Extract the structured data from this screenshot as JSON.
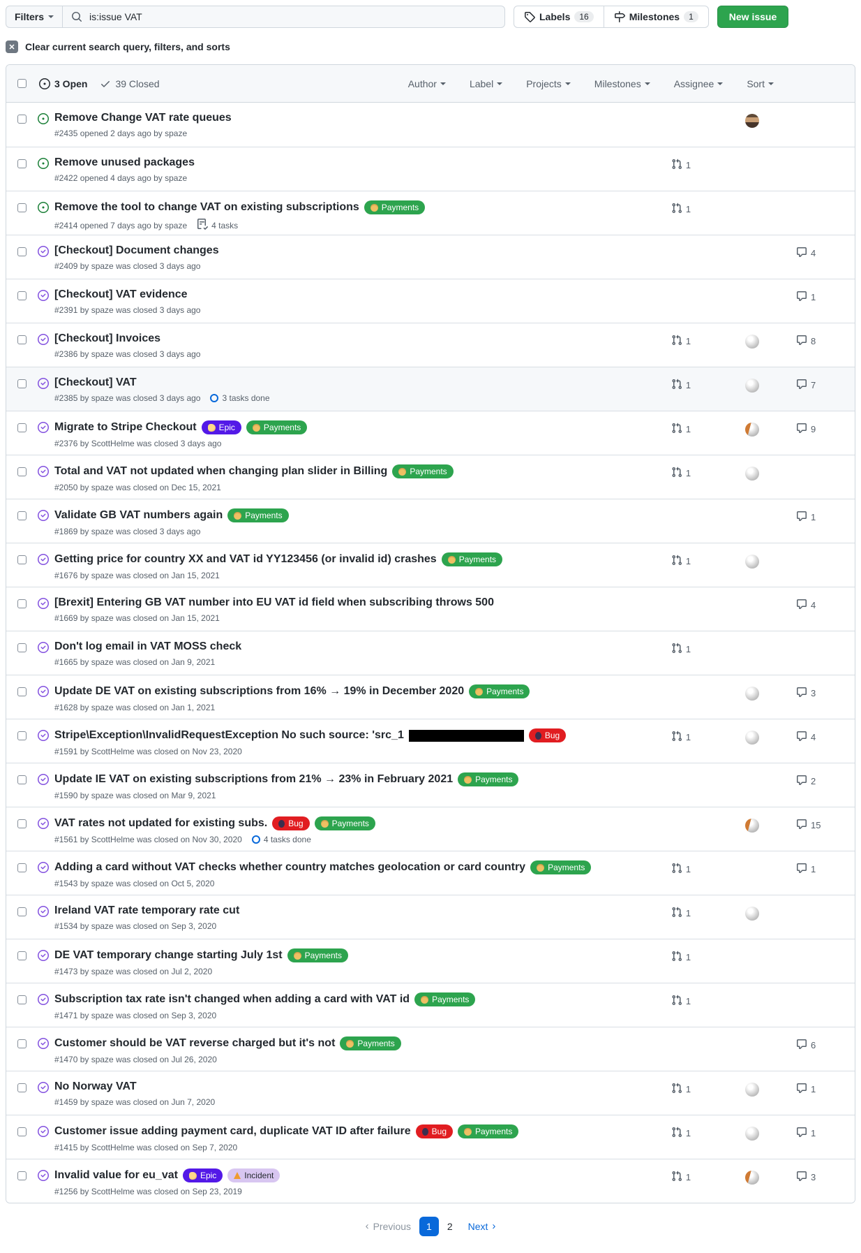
{
  "toolbar": {
    "filters_label": "Filters",
    "search_icon": "magnifier-icon",
    "search_value": "is:issue VAT",
    "labels_icon": "tag-icon",
    "labels_label": "Labels",
    "labels_count": "16",
    "milestones_icon": "milestone-icon",
    "milestones_label": "Milestones",
    "milestones_count": "1",
    "new_issue_label": "New issue"
  },
  "clear_search": {
    "icon": "x-icon",
    "label": "Clear current search query, filters, and sorts"
  },
  "list_header": {
    "open_label": "3 Open",
    "closed_label": "39 Closed",
    "filters": [
      {
        "label": "Author"
      },
      {
        "label": "Label"
      },
      {
        "label": "Projects"
      },
      {
        "label": "Milestones"
      },
      {
        "label": "Assignee"
      },
      {
        "label": "Sort"
      }
    ]
  },
  "label_defs": {
    "Payments": {
      "bg": "#2da44e",
      "fg": "#ffffff",
      "icon": "money-bag-icon"
    },
    "Epic": {
      "bg": "#5319e7",
      "fg": "#ffffff",
      "icon": "muscle-icon"
    },
    "Bug": {
      "bg": "#e11d21",
      "fg": "#ffffff",
      "icon": "bug-icon"
    },
    "Incident": {
      "bg": "#d8c6f1",
      "fg": "#24292f",
      "icon": "warning-icon"
    }
  },
  "colors": {
    "open_icon": "#1a7f37",
    "closed_icon": "#8250df",
    "accent": "#0969da",
    "new_issue_bg": "#2da44e"
  },
  "issues": [
    {
      "state": "open",
      "title": "Remove Change VAT rate queues",
      "labels": [],
      "meta": "#2435 opened 2 days ago by spaze",
      "tasks": null,
      "pr": null,
      "assignee": "person",
      "comments": null,
      "highlight": false,
      "redacted": false
    },
    {
      "state": "open",
      "title": "Remove unused packages",
      "labels": [],
      "meta": "#2422 opened 4 days ago by spaze",
      "tasks": null,
      "pr": 1,
      "assignee": null,
      "comments": null,
      "highlight": false,
      "redacted": false
    },
    {
      "state": "open",
      "title": "Remove the tool to change VAT on existing subscriptions",
      "labels": [
        "Payments"
      ],
      "meta": "#2414 opened 7 days ago by spaze",
      "tasks": {
        "type": "tasklist",
        "text": "4 tasks"
      },
      "pr": 1,
      "assignee": null,
      "comments": null,
      "highlight": false,
      "redacted": false
    },
    {
      "state": "closed",
      "title": "[Checkout] Document changes",
      "labels": [],
      "meta": "#2409 by spaze was closed 3 days ago",
      "tasks": null,
      "pr": null,
      "assignee": null,
      "comments": 4,
      "highlight": false,
      "redacted": false
    },
    {
      "state": "closed",
      "title": "[Checkout] VAT evidence",
      "labels": [],
      "meta": "#2391 by spaze was closed 3 days ago",
      "tasks": null,
      "pr": null,
      "assignee": null,
      "comments": 1,
      "highlight": false,
      "redacted": false
    },
    {
      "state": "closed",
      "title": "[Checkout] Invoices",
      "labels": [],
      "meta": "#2386 by spaze was closed 3 days ago",
      "tasks": null,
      "pr": 1,
      "assignee": "globe",
      "comments": 8,
      "highlight": false,
      "redacted": false
    },
    {
      "state": "closed",
      "title": "[Checkout] VAT",
      "labels": [],
      "meta": "#2385 by spaze was closed 3 days ago",
      "tasks": {
        "type": "progress",
        "text": "3 tasks done"
      },
      "pr": 1,
      "assignee": "globe",
      "comments": 7,
      "highlight": true,
      "redacted": false
    },
    {
      "state": "closed",
      "title": "Migrate to Stripe Checkout",
      "labels": [
        "Epic",
        "Payments"
      ],
      "meta": "#2376 by ScottHelme was closed 3 days ago",
      "tasks": null,
      "pr": 1,
      "assignee": "globe-orange",
      "comments": 9,
      "highlight": false,
      "redacted": false
    },
    {
      "state": "closed",
      "title": "Total and VAT not updated when changing plan slider in Billing",
      "labels": [
        "Payments"
      ],
      "meta": "#2050 by spaze was closed on Dec 15, 2021",
      "tasks": null,
      "pr": 1,
      "assignee": "globe",
      "comments": null,
      "highlight": false,
      "redacted": false
    },
    {
      "state": "closed",
      "title": "Validate GB VAT numbers again",
      "labels": [
        "Payments"
      ],
      "meta": "#1869 by spaze was closed 3 days ago",
      "tasks": null,
      "pr": null,
      "assignee": null,
      "comments": 1,
      "highlight": false,
      "redacted": false
    },
    {
      "state": "closed",
      "title": "Getting price for country XX and VAT id YY123456 (or invalid id) crashes",
      "labels": [
        "Payments"
      ],
      "meta": "#1676 by spaze was closed on Jan 15, 2021",
      "tasks": null,
      "pr": 1,
      "assignee": "globe",
      "comments": null,
      "highlight": false,
      "redacted": false
    },
    {
      "state": "closed",
      "title": "[Brexit] Entering GB VAT number into EU VAT id field when subscribing throws 500",
      "labels": [],
      "meta": "#1669 by spaze was closed on Jan 15, 2021",
      "tasks": null,
      "pr": null,
      "assignee": null,
      "comments": 4,
      "highlight": false,
      "redacted": false
    },
    {
      "state": "closed",
      "title": "Don't log email in VAT MOSS check",
      "labels": [],
      "meta": "#1665 by spaze was closed on Jan 9, 2021",
      "tasks": null,
      "pr": 1,
      "assignee": null,
      "comments": null,
      "highlight": false,
      "redacted": false
    },
    {
      "state": "closed",
      "title": "Update DE VAT on existing subscriptions from 16% → 19% in December 2020",
      "labels": [
        "Payments"
      ],
      "meta": "#1628 by spaze was closed on Jan 1, 2021",
      "tasks": null,
      "pr": null,
      "assignee": "globe",
      "comments": 3,
      "highlight": false,
      "redacted": false
    },
    {
      "state": "closed",
      "title": "Stripe\\Exception\\InvalidRequestException No such source: 'src_1",
      "labels": [
        "Bug"
      ],
      "meta": "#1591 by ScottHelme was closed on Nov 23, 2020",
      "tasks": null,
      "pr": 1,
      "assignee": "globe",
      "comments": 4,
      "highlight": false,
      "redacted": true
    },
    {
      "state": "closed",
      "title": "Update IE VAT on existing subscriptions from 21% → 23% in February 2021",
      "labels": [
        "Payments"
      ],
      "meta": "#1590 by spaze was closed on Mar 9, 2021",
      "tasks": null,
      "pr": null,
      "assignee": null,
      "comments": 2,
      "highlight": false,
      "redacted": false
    },
    {
      "state": "closed",
      "title": "VAT rates not updated for existing subs.",
      "labels": [
        "Bug",
        "Payments"
      ],
      "meta": "#1561 by ScottHelme was closed on Nov 30, 2020",
      "tasks": {
        "type": "progress",
        "text": "4 tasks done"
      },
      "pr": null,
      "assignee": "globe-orange",
      "comments": 15,
      "highlight": false,
      "redacted": false
    },
    {
      "state": "closed",
      "title": "Adding a card without VAT checks whether country matches geolocation or card country",
      "labels": [
        "Payments"
      ],
      "meta": "#1543 by spaze was closed on Oct 5, 2020",
      "tasks": null,
      "pr": 1,
      "assignee": null,
      "comments": 1,
      "highlight": false,
      "redacted": false
    },
    {
      "state": "closed",
      "title": "Ireland VAT rate temporary rate cut",
      "labels": [],
      "meta": "#1534 by spaze was closed on Sep 3, 2020",
      "tasks": null,
      "pr": 1,
      "assignee": "globe",
      "comments": null,
      "highlight": false,
      "redacted": false
    },
    {
      "state": "closed",
      "title": "DE VAT temporary change starting July 1st",
      "labels": [
        "Payments"
      ],
      "meta": "#1473 by spaze was closed on Jul 2, 2020",
      "tasks": null,
      "pr": 1,
      "assignee": null,
      "comments": null,
      "highlight": false,
      "redacted": false
    },
    {
      "state": "closed",
      "title": "Subscription tax rate isn't changed when adding a card with VAT id",
      "labels": [
        "Payments"
      ],
      "meta": "#1471 by spaze was closed on Sep 3, 2020",
      "tasks": null,
      "pr": 1,
      "assignee": null,
      "comments": null,
      "highlight": false,
      "redacted": false
    },
    {
      "state": "closed",
      "title": "Customer should be VAT reverse charged but it's not",
      "labels": [
        "Payments"
      ],
      "meta": "#1470 by spaze was closed on Jul 26, 2020",
      "tasks": null,
      "pr": null,
      "assignee": null,
      "comments": 6,
      "highlight": false,
      "redacted": false
    },
    {
      "state": "closed",
      "title": "No Norway VAT",
      "labels": [],
      "meta": "#1459 by spaze was closed on Jun 7, 2020",
      "tasks": null,
      "pr": 1,
      "assignee": "globe",
      "comments": 1,
      "highlight": false,
      "redacted": false
    },
    {
      "state": "closed",
      "title": "Customer issue adding payment card, duplicate VAT ID after failure",
      "labels": [
        "Bug",
        "Payments"
      ],
      "meta": "#1415 by ScottHelme was closed on Sep 7, 2020",
      "tasks": null,
      "pr": 1,
      "assignee": "globe",
      "comments": 1,
      "highlight": false,
      "redacted": false
    },
    {
      "state": "closed",
      "title": "Invalid value for eu_vat",
      "labels": [
        "Epic",
        "Incident"
      ],
      "meta": "#1256 by ScottHelme was closed on Sep 23, 2019",
      "tasks": null,
      "pr": 1,
      "assignee": "globe-orange",
      "comments": 3,
      "highlight": false,
      "redacted": false
    }
  ],
  "pagination": {
    "previous_label": "Previous",
    "page_1": "1",
    "page_2": "2",
    "current_page": "1",
    "next_label": "Next"
  }
}
